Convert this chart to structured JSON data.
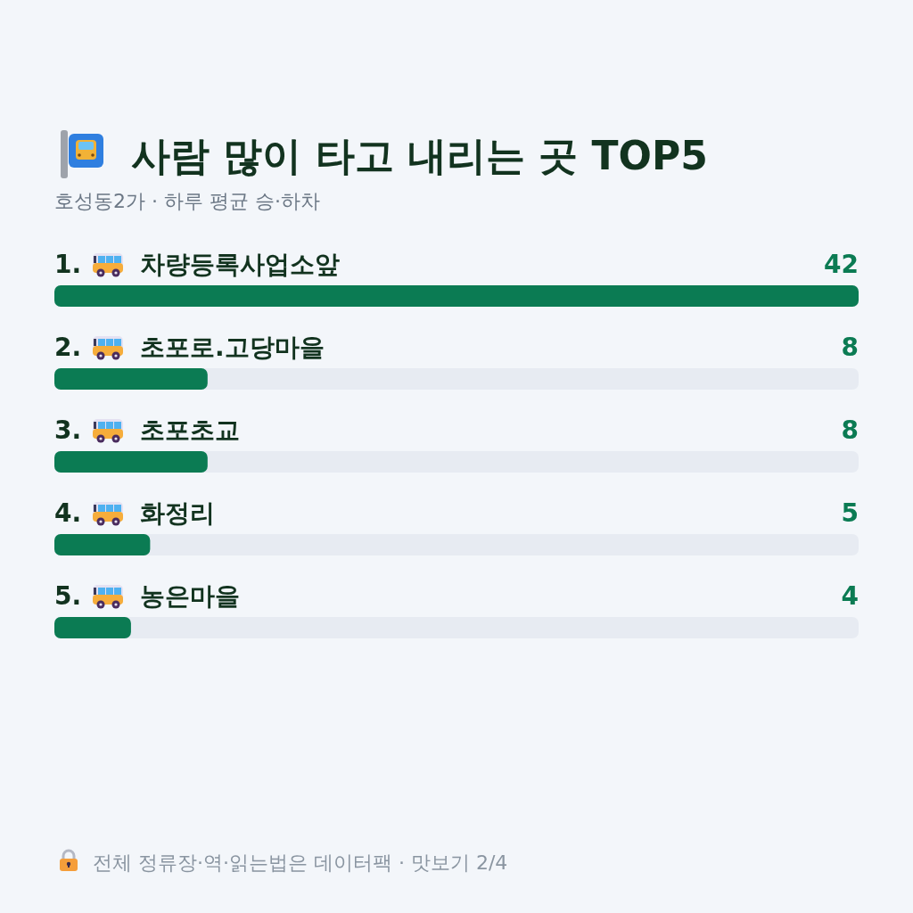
{
  "chart_data": {
    "type": "bar",
    "orientation": "horizontal",
    "title": "사람 많이 타고 내리는 곳 TOP5",
    "subtitle": "호성동2가 · 하루 평균 승·하차",
    "categories": [
      "1. 차량등록사업소앞",
      "2. 초포로.고당마을",
      "3. 초포초교",
      "4. 화정리",
      "5. 농은마을"
    ],
    "values": [
      42,
      8,
      8,
      5,
      4
    ],
    "color": "#0b7b53",
    "data_labels": true,
    "tick_labels": "y",
    "annotations": [
      "전체 정류장·역·읽는법은 데이터팩 · 맛보기 2/4"
    ]
  }
}
